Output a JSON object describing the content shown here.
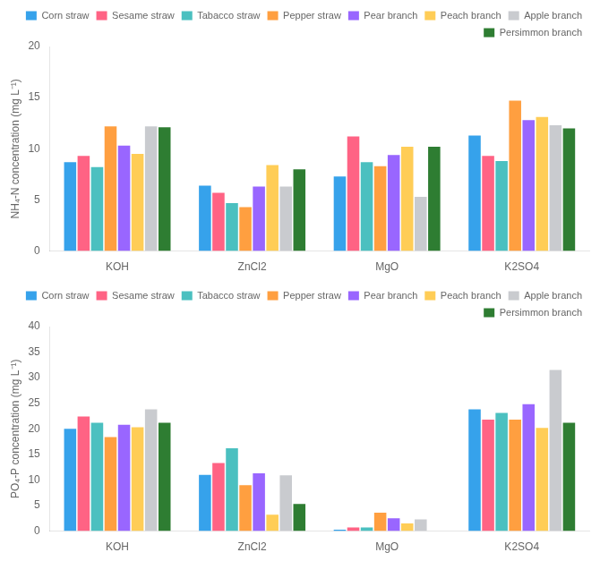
{
  "chart_data": [
    {
      "type": "bar",
      "ylabel": "NH₄-N concentration (mg L⁻¹)",
      "categories": [
        "KOH",
        "ZnCl2",
        "MgO",
        "K2SO4"
      ],
      "series": [
        {
          "name": "Corn straw",
          "color": "#36a2eb",
          "values": [
            8.7,
            6.4,
            7.3,
            11.3
          ]
        },
        {
          "name": "Sesame straw",
          "color": "#ff6384",
          "values": [
            9.3,
            5.7,
            11.2,
            9.3
          ]
        },
        {
          "name": "Tabacco straw",
          "color": "#4bc0c0",
          "values": [
            8.2,
            4.7,
            8.7,
            8.8
          ]
        },
        {
          "name": "Pepper straw",
          "color": "#ff9f40",
          "values": [
            12.2,
            4.3,
            8.3,
            14.7
          ]
        },
        {
          "name": "Pear branch",
          "color": "#9966ff",
          "values": [
            10.3,
            6.3,
            9.4,
            12.8
          ]
        },
        {
          "name": "Peach branch",
          "color": "#ffcd56",
          "values": [
            9.5,
            8.4,
            10.2,
            13.1
          ]
        },
        {
          "name": "Apple branch",
          "color": "#c9cbcf",
          "values": [
            12.2,
            6.3,
            5.3,
            12.3
          ]
        },
        {
          "name": "Persimmon branch",
          "color": "#2e7d32",
          "values": [
            12.1,
            8.0,
            10.2,
            12.0
          ]
        }
      ],
      "ylim": [
        0,
        20
      ],
      "yticks": [
        0,
        5,
        10,
        15,
        20
      ],
      "grid": false,
      "legend": "upper right"
    },
    {
      "type": "bar",
      "ylabel": "PO₄-P concentration (mg L⁻¹)",
      "categories": [
        "KOH",
        "ZnCl2",
        "MgO",
        "K2SO4"
      ],
      "series": [
        {
          "name": "Corn straw",
          "color": "#36a2eb",
          "values": [
            20.0,
            11.0,
            0.3,
            23.8
          ]
        },
        {
          "name": "Sesame straw",
          "color": "#ff6384",
          "values": [
            22.4,
            13.3,
            0.7,
            21.8
          ]
        },
        {
          "name": "Tabacco straw",
          "color": "#4bc0c0",
          "values": [
            21.2,
            16.2,
            0.7,
            23.1
          ]
        },
        {
          "name": "Pepper straw",
          "color": "#ff9f40",
          "values": [
            18.4,
            9.0,
            3.6,
            21.8
          ]
        },
        {
          "name": "Pear branch",
          "color": "#9966ff",
          "values": [
            20.8,
            11.3,
            2.5,
            24.8
          ]
        },
        {
          "name": "Peach branch",
          "color": "#ffcd56",
          "values": [
            20.3,
            3.2,
            1.5,
            20.2
          ]
        },
        {
          "name": "Apple branch",
          "color": "#c9cbcf",
          "values": [
            23.8,
            10.9,
            2.3,
            31.5
          ]
        },
        {
          "name": "Persimmon branch",
          "color": "#2e7d32",
          "values": [
            21.2,
            5.3,
            0.0,
            21.2
          ]
        }
      ],
      "ylim": [
        0,
        40
      ],
      "yticks": [
        0,
        5,
        10,
        15,
        20,
        25,
        30,
        35,
        40
      ],
      "grid": false,
      "legend": "upper right"
    }
  ]
}
